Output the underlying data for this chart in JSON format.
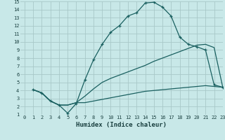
{
  "xlabel": "Humidex (Indice chaleur)",
  "bg_color": "#c8e8e8",
  "grid_color": "#a8c8c8",
  "line_color": "#1a6060",
  "xlim": [
    -0.5,
    23
  ],
  "ylim": [
    1,
    15
  ],
  "xticks": [
    0,
    1,
    2,
    3,
    4,
    5,
    6,
    7,
    8,
    9,
    10,
    11,
    12,
    13,
    14,
    15,
    16,
    17,
    18,
    19,
    20,
    21,
    22,
    23
  ],
  "yticks": [
    1,
    2,
    3,
    4,
    5,
    6,
    7,
    8,
    9,
    10,
    11,
    12,
    13,
    14,
    15
  ],
  "line1_x": [
    1,
    2,
    3,
    4,
    5,
    6,
    7,
    8,
    9,
    10,
    11,
    12,
    13,
    14,
    15,
    16,
    17,
    18,
    19,
    20,
    21,
    22,
    23
  ],
  "line1_y": [
    4.1,
    3.7,
    2.7,
    2.2,
    1.2,
    2.4,
    5.3,
    7.8,
    9.7,
    11.2,
    12.0,
    13.2,
    13.6,
    14.8,
    14.9,
    14.3,
    13.2,
    10.6,
    9.7,
    9.4,
    9.0,
    4.7,
    4.4
  ],
  "line2_x": [
    1,
    2,
    3,
    4,
    5,
    6,
    7,
    8,
    9,
    10,
    11,
    12,
    13,
    14,
    15,
    16,
    17,
    18,
    19,
    20,
    21,
    22,
    23
  ],
  "line2_y": [
    4.1,
    3.7,
    2.7,
    2.2,
    2.2,
    2.5,
    3.3,
    4.2,
    5.0,
    5.5,
    5.9,
    6.3,
    6.7,
    7.1,
    7.6,
    8.0,
    8.4,
    8.8,
    9.2,
    9.6,
    9.7,
    9.3,
    4.4
  ],
  "line3_x": [
    1,
    2,
    3,
    4,
    5,
    6,
    7,
    8,
    9,
    10,
    11,
    12,
    13,
    14,
    15,
    16,
    17,
    18,
    19,
    20,
    21,
    22,
    23
  ],
  "line3_y": [
    4.1,
    3.7,
    2.7,
    2.2,
    2.2,
    2.5,
    2.5,
    2.7,
    2.9,
    3.1,
    3.3,
    3.5,
    3.7,
    3.9,
    4.0,
    4.1,
    4.2,
    4.3,
    4.4,
    4.5,
    4.6,
    4.5,
    4.4
  ]
}
